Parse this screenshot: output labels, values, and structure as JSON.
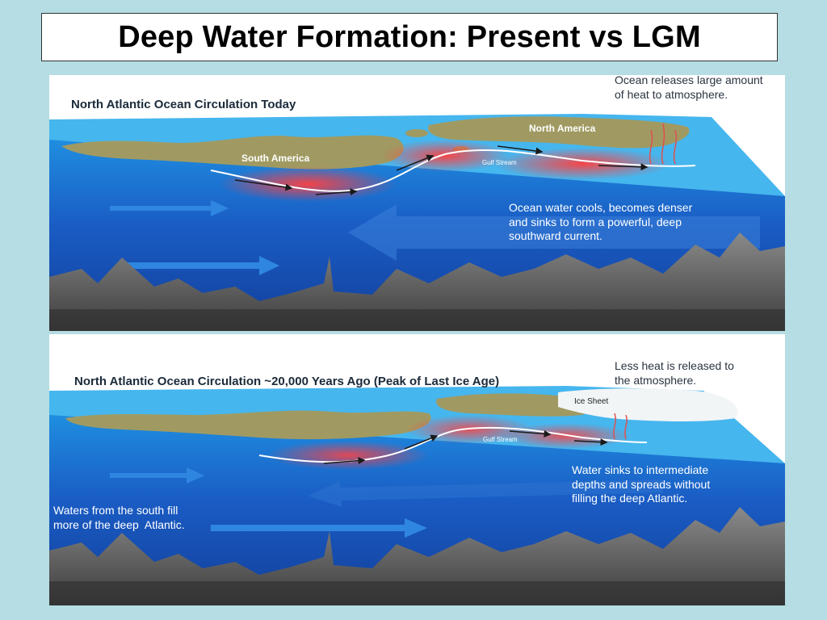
{
  "slide": {
    "title": "Deep Water Formation: Present vs LGM"
  },
  "top_panel": {
    "heading": "North Atlantic Ocean Circulation Today",
    "note_heat": "Ocean releases large amount\nof heat to atmosphere.",
    "label_south_america": "South America",
    "label_north_america": "North America",
    "label_gulf_stream": "Gulf Stream",
    "note_sinking": "Ocean water cools, becomes denser\nand sinks to form a powerful, deep\nsouthward current."
  },
  "bottom_panel": {
    "heading": "North Atlantic Ocean Circulation ~20,000 Years Ago (Peak of Last Ice Age)",
    "note_heat": "Less heat is released to\nthe atmosphere.",
    "label_ice_sheet": "Ice Sheet",
    "label_gulf_stream": "Gulf Stream",
    "note_intermediate": "Water sinks to intermediate\ndepths and spreads without\nfilling the deep Atlantic.",
    "note_south": "Waters from the south fill\nmore of the deep  Atlantic."
  },
  "colors": {
    "background": "#b5dde3",
    "ocean_deep": "#1a4fb0",
    "ocean_surface": "#1e8fe0",
    "land": "#a09a62",
    "warm_current": "#ff3838",
    "seafloor": "#6e6e6e"
  }
}
